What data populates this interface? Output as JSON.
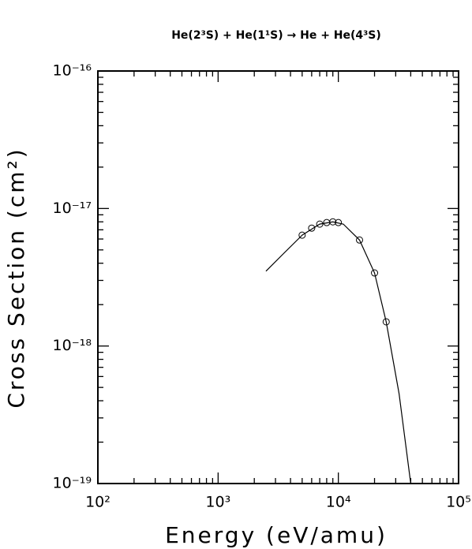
{
  "chart_data": {
    "type": "scatter",
    "title": "He(2³S) + He(1¹S) → He + He(4³S)",
    "xlabel": "Energy (eV/amu)",
    "ylabel": "Cross Section (cm²)",
    "xscale": "log",
    "yscale": "log",
    "xlim": [
      100,
      100000
    ],
    "ylim": [
      1e-19,
      1e-16
    ],
    "xticks": [
      {
        "value": 100,
        "label": "10²"
      },
      {
        "value": 1000,
        "label": "10³"
      },
      {
        "value": 10000,
        "label": "10⁴"
      },
      {
        "value": 100000,
        "label": "10⁵"
      }
    ],
    "yticks": [
      {
        "value": 1e-19,
        "label": "10⁻¹⁹"
      },
      {
        "value": 1e-18,
        "label": "10⁻¹⁸"
      },
      {
        "value": 1e-17,
        "label": "10⁻¹⁷"
      },
      {
        "value": 1e-16,
        "label": "10⁻¹⁶"
      }
    ],
    "minor_ticks": true,
    "series": [
      {
        "style": "markers",
        "color": "#000000",
        "x": [
          5000,
          6000,
          7000,
          8000,
          9000,
          10000,
          15000,
          20000,
          25000
        ],
        "values": [
          6.4e-18,
          7.2e-18,
          7.7e-18,
          7.9e-18,
          8e-18,
          7.9e-18,
          5.9e-18,
          3.4e-18,
          1.5e-18
        ]
      },
      {
        "style": "line",
        "color": "#000000",
        "x": [
          2500,
          3500,
          5000,
          7000,
          9000,
          11000,
          15000,
          20000,
          25000,
          32000,
          40000
        ],
        "values": [
          3.5e-18,
          4.7e-18,
          6.4e-18,
          7.7e-18,
          8e-18,
          7.7e-18,
          5.9e-18,
          3.4e-18,
          1.5e-18,
          4.5e-19,
          1e-19
        ]
      }
    ]
  }
}
